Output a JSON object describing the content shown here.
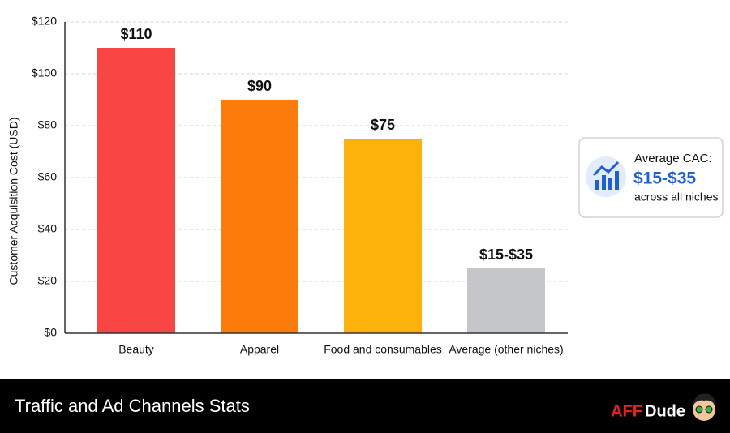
{
  "chart_data": {
    "type": "bar",
    "y_label": "Customer Acquisition Cost (USD)",
    "categories": [
      "Beauty",
      "Apparel",
      "Food and consumables",
      "Average (other niches)"
    ],
    "values": [
      110,
      90,
      75,
      25
    ],
    "value_labels": [
      "$110",
      "$90",
      "$75",
      "$15-$35"
    ],
    "colors": [
      "#fa4545",
      "#fd7b0b",
      "#fdb10b",
      "#c5c6c9"
    ],
    "ylim": [
      0,
      120
    ],
    "yticks": [
      {
        "value": 0,
        "label": "$0"
      },
      {
        "value": 20,
        "label": "$20"
      },
      {
        "value": 40,
        "label": "$40"
      },
      {
        "value": 60,
        "label": "$60"
      },
      {
        "value": 80,
        "label": "$80"
      },
      {
        "value": 100,
        "label": "$100"
      },
      {
        "value": 120,
        "label": "$120"
      }
    ],
    "grid": true,
    "callout": {
      "title": "Average CAC:",
      "value": "$15-$35",
      "note": "across all niches"
    }
  },
  "footer": {
    "title": "Traffic and Ad Channels Stats",
    "logo_left": "AFF",
    "logo_right": "Dude"
  }
}
